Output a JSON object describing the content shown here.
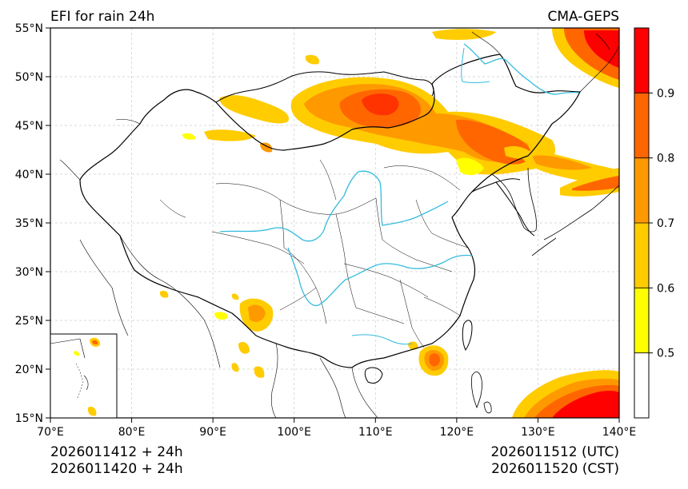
{
  "header": {
    "title": "EFI for rain 24h",
    "model": "CMA-GEPS"
  },
  "map": {
    "lon_min": 70,
    "lon_max": 140,
    "lat_min": 15,
    "lat_max": 55,
    "lon_ticks": [
      {
        "value": 70,
        "label": "70°E"
      },
      {
        "value": 80,
        "label": "80°E"
      },
      {
        "value": 90,
        "label": "90°E"
      },
      {
        "value": 100,
        "label": "100°E"
      },
      {
        "value": 110,
        "label": "110°E"
      },
      {
        "value": 120,
        "label": "120°E"
      },
      {
        "value": 130,
        "label": "130°E"
      },
      {
        "value": 140,
        "label": "140°E"
      }
    ],
    "lat_ticks": [
      {
        "value": 15,
        "label": "15°N"
      },
      {
        "value": 20,
        "label": "20°N"
      },
      {
        "value": 25,
        "label": "25°N"
      },
      {
        "value": 30,
        "label": "30°N"
      },
      {
        "value": 35,
        "label": "35°N"
      },
      {
        "value": 40,
        "label": "40°N"
      },
      {
        "value": 45,
        "label": "45°N"
      },
      {
        "value": 50,
        "label": "50°N"
      },
      {
        "value": 55,
        "label": "55°N"
      }
    ],
    "grid": true,
    "inset": "bottom-left"
  },
  "colorbar": {
    "levels": [
      {
        "value": 0.5,
        "label": "0.5"
      },
      {
        "value": 0.6,
        "label": "0.6"
      },
      {
        "value": 0.7,
        "label": "0.7"
      },
      {
        "value": 0.8,
        "label": "0.8"
      },
      {
        "value": 0.9,
        "label": "0.9"
      }
    ],
    "min": 0.4,
    "max": 1.0,
    "colors": [
      "#ffffff",
      "#ffff00",
      "#ffcc00",
      "#ff9900",
      "#ff6600",
      "#ff0000"
    ]
  },
  "footer": {
    "init_utc": "2026011412 + 24h",
    "init_cst": "2026011420 + 24h",
    "valid_utc": "2026011512 (UTC)",
    "valid_cst": "2026011520 (CST)"
  },
  "colors": {
    "river": "#33bbdd",
    "border": "#000000",
    "grid": "#cccccc"
  }
}
